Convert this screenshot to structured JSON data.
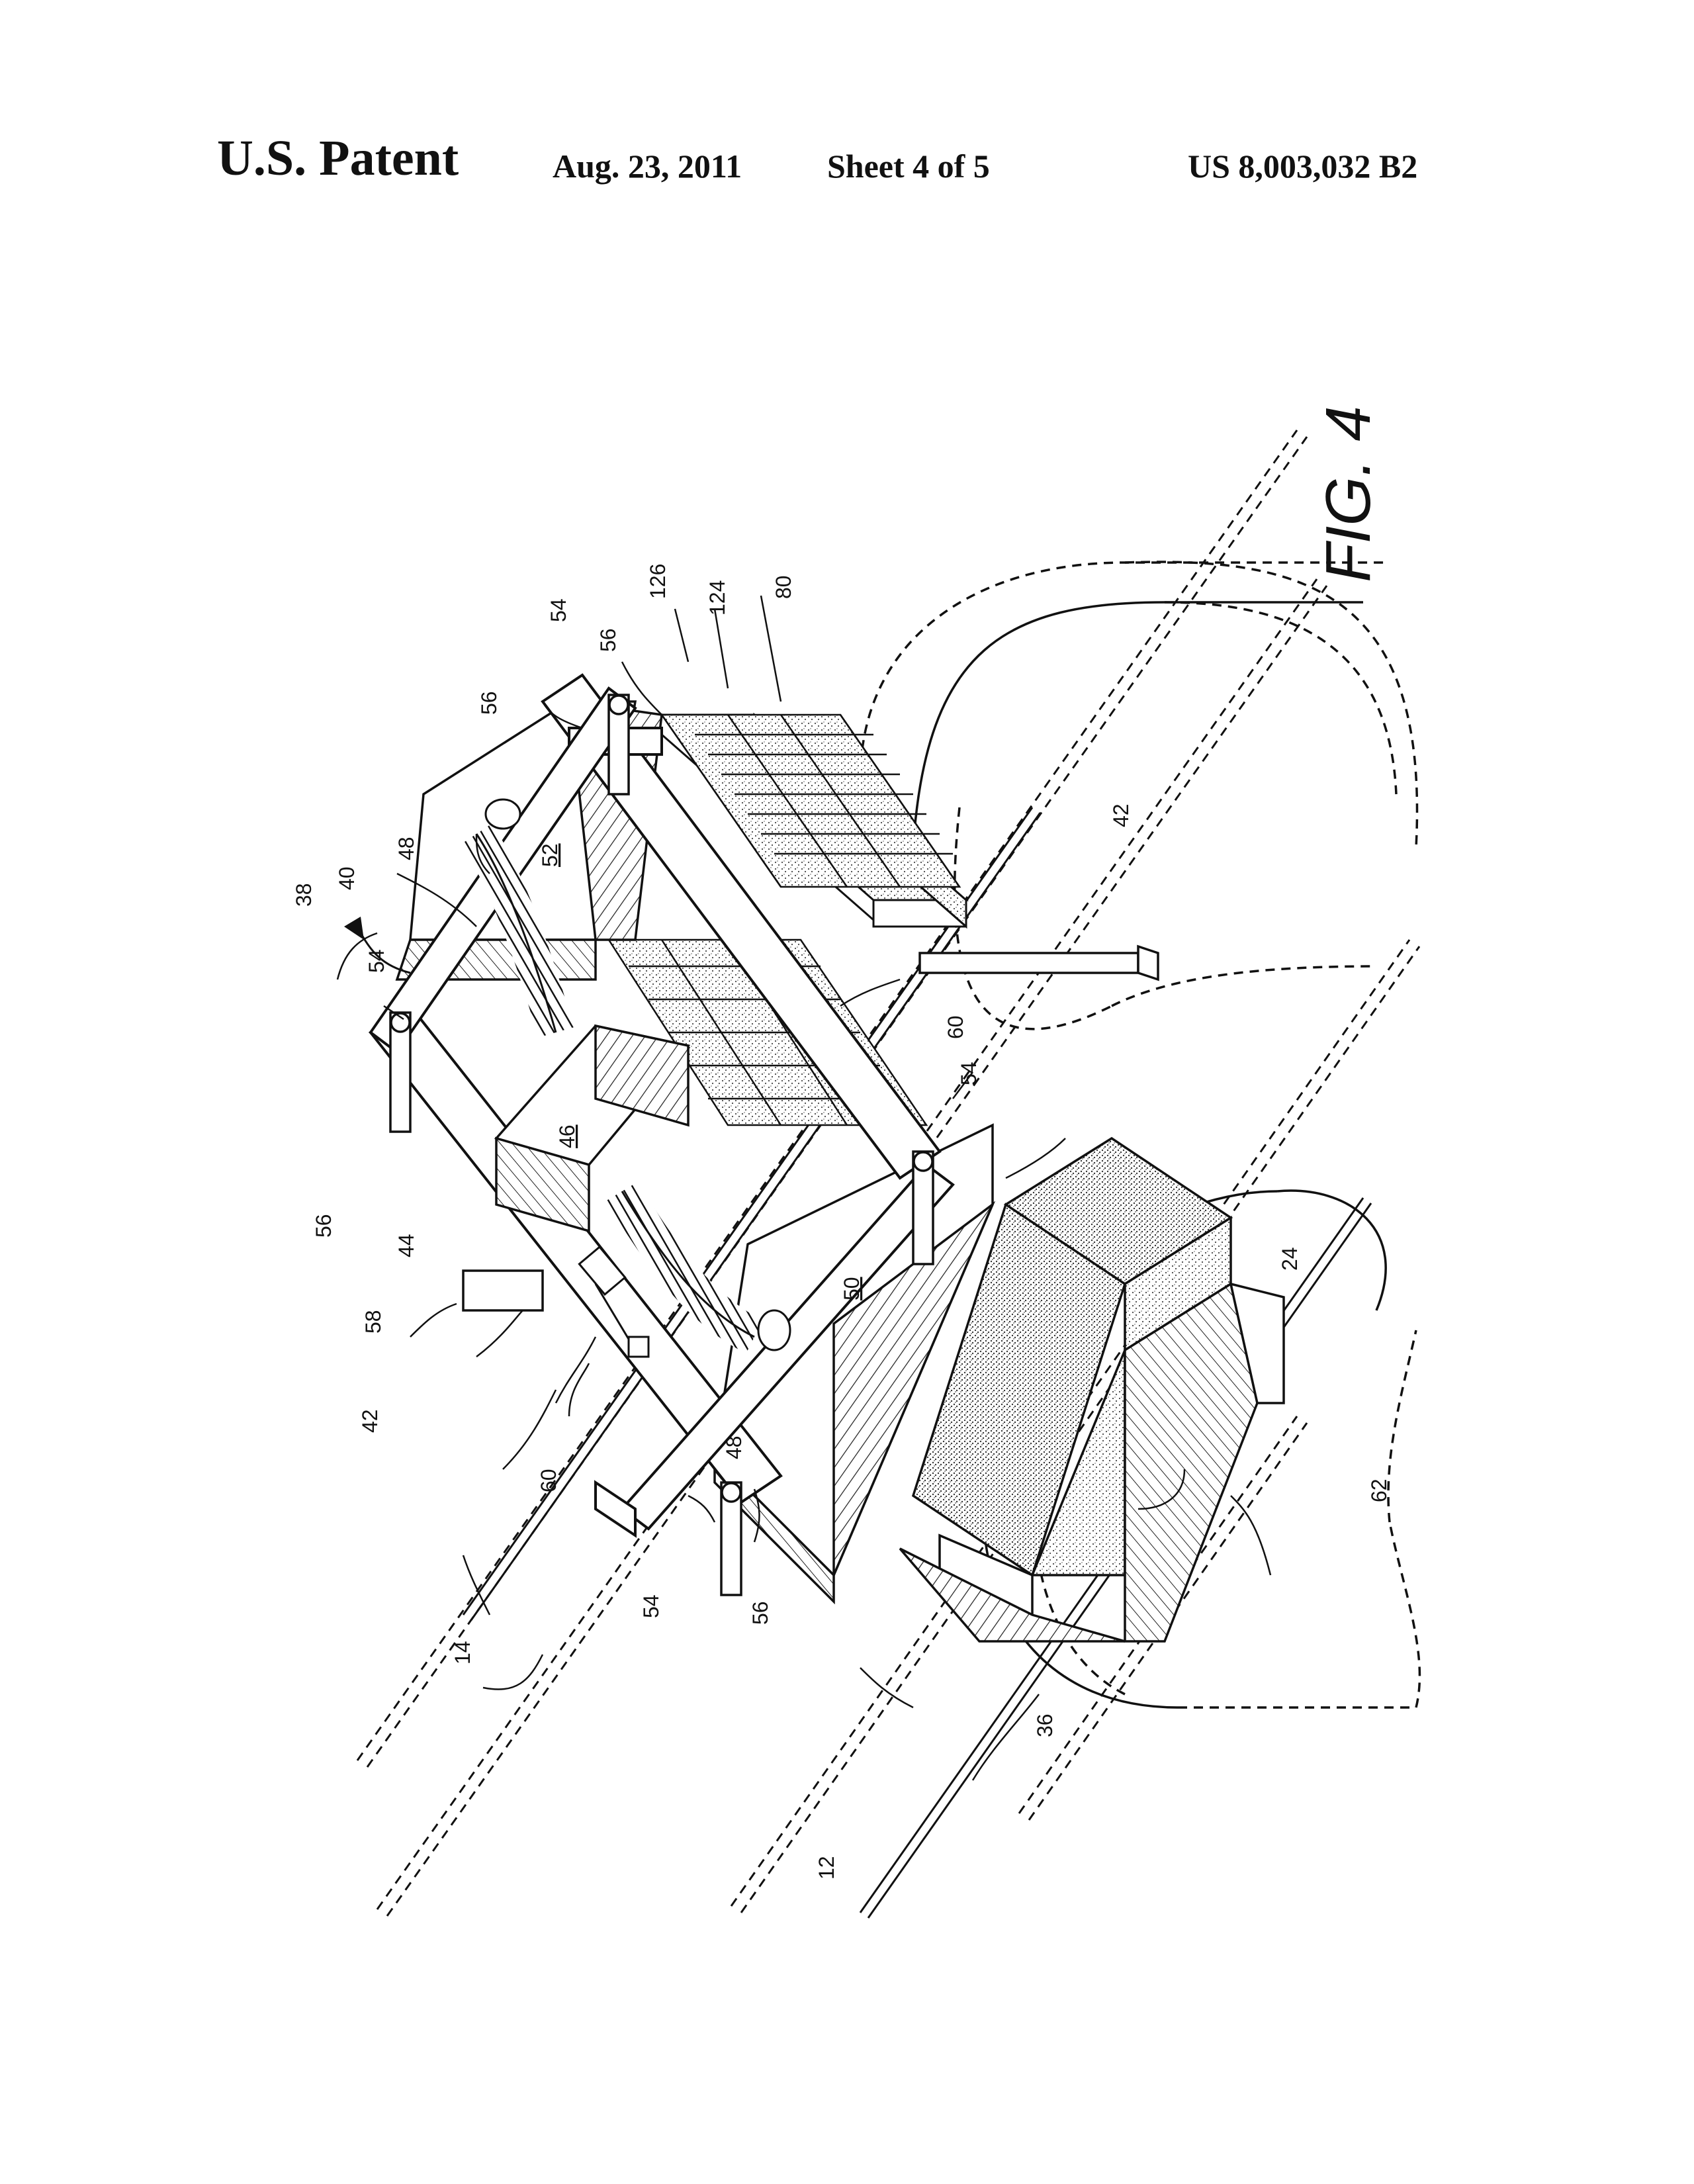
{
  "header": {
    "title": "U.S. Patent",
    "date": "Aug. 23, 2011",
    "sheet": "Sheet 4 of 5",
    "patent_number": "US 8,003,032 B2"
  },
  "figure": {
    "label": "FIG. 4",
    "refs": {
      "r38": "38",
      "r40": "40",
      "r48a": "48",
      "r54a": "54",
      "r56a": "56",
      "r56b": "56",
      "r54b": "54",
      "r126": "126",
      "r124": "124",
      "r80": "80",
      "r52": "52",
      "r46": "46",
      "r42a": "42",
      "r60a": "60",
      "r54c": "54",
      "r50": "50",
      "r24": "24",
      "r62": "62",
      "r56c": "56",
      "r44": "44",
      "r58": "58",
      "r42b": "42",
      "r60b": "60",
      "r48b": "48",
      "r54d": "54",
      "r56d": "56",
      "r14": "14",
      "r36": "36",
      "r12": "12"
    }
  }
}
